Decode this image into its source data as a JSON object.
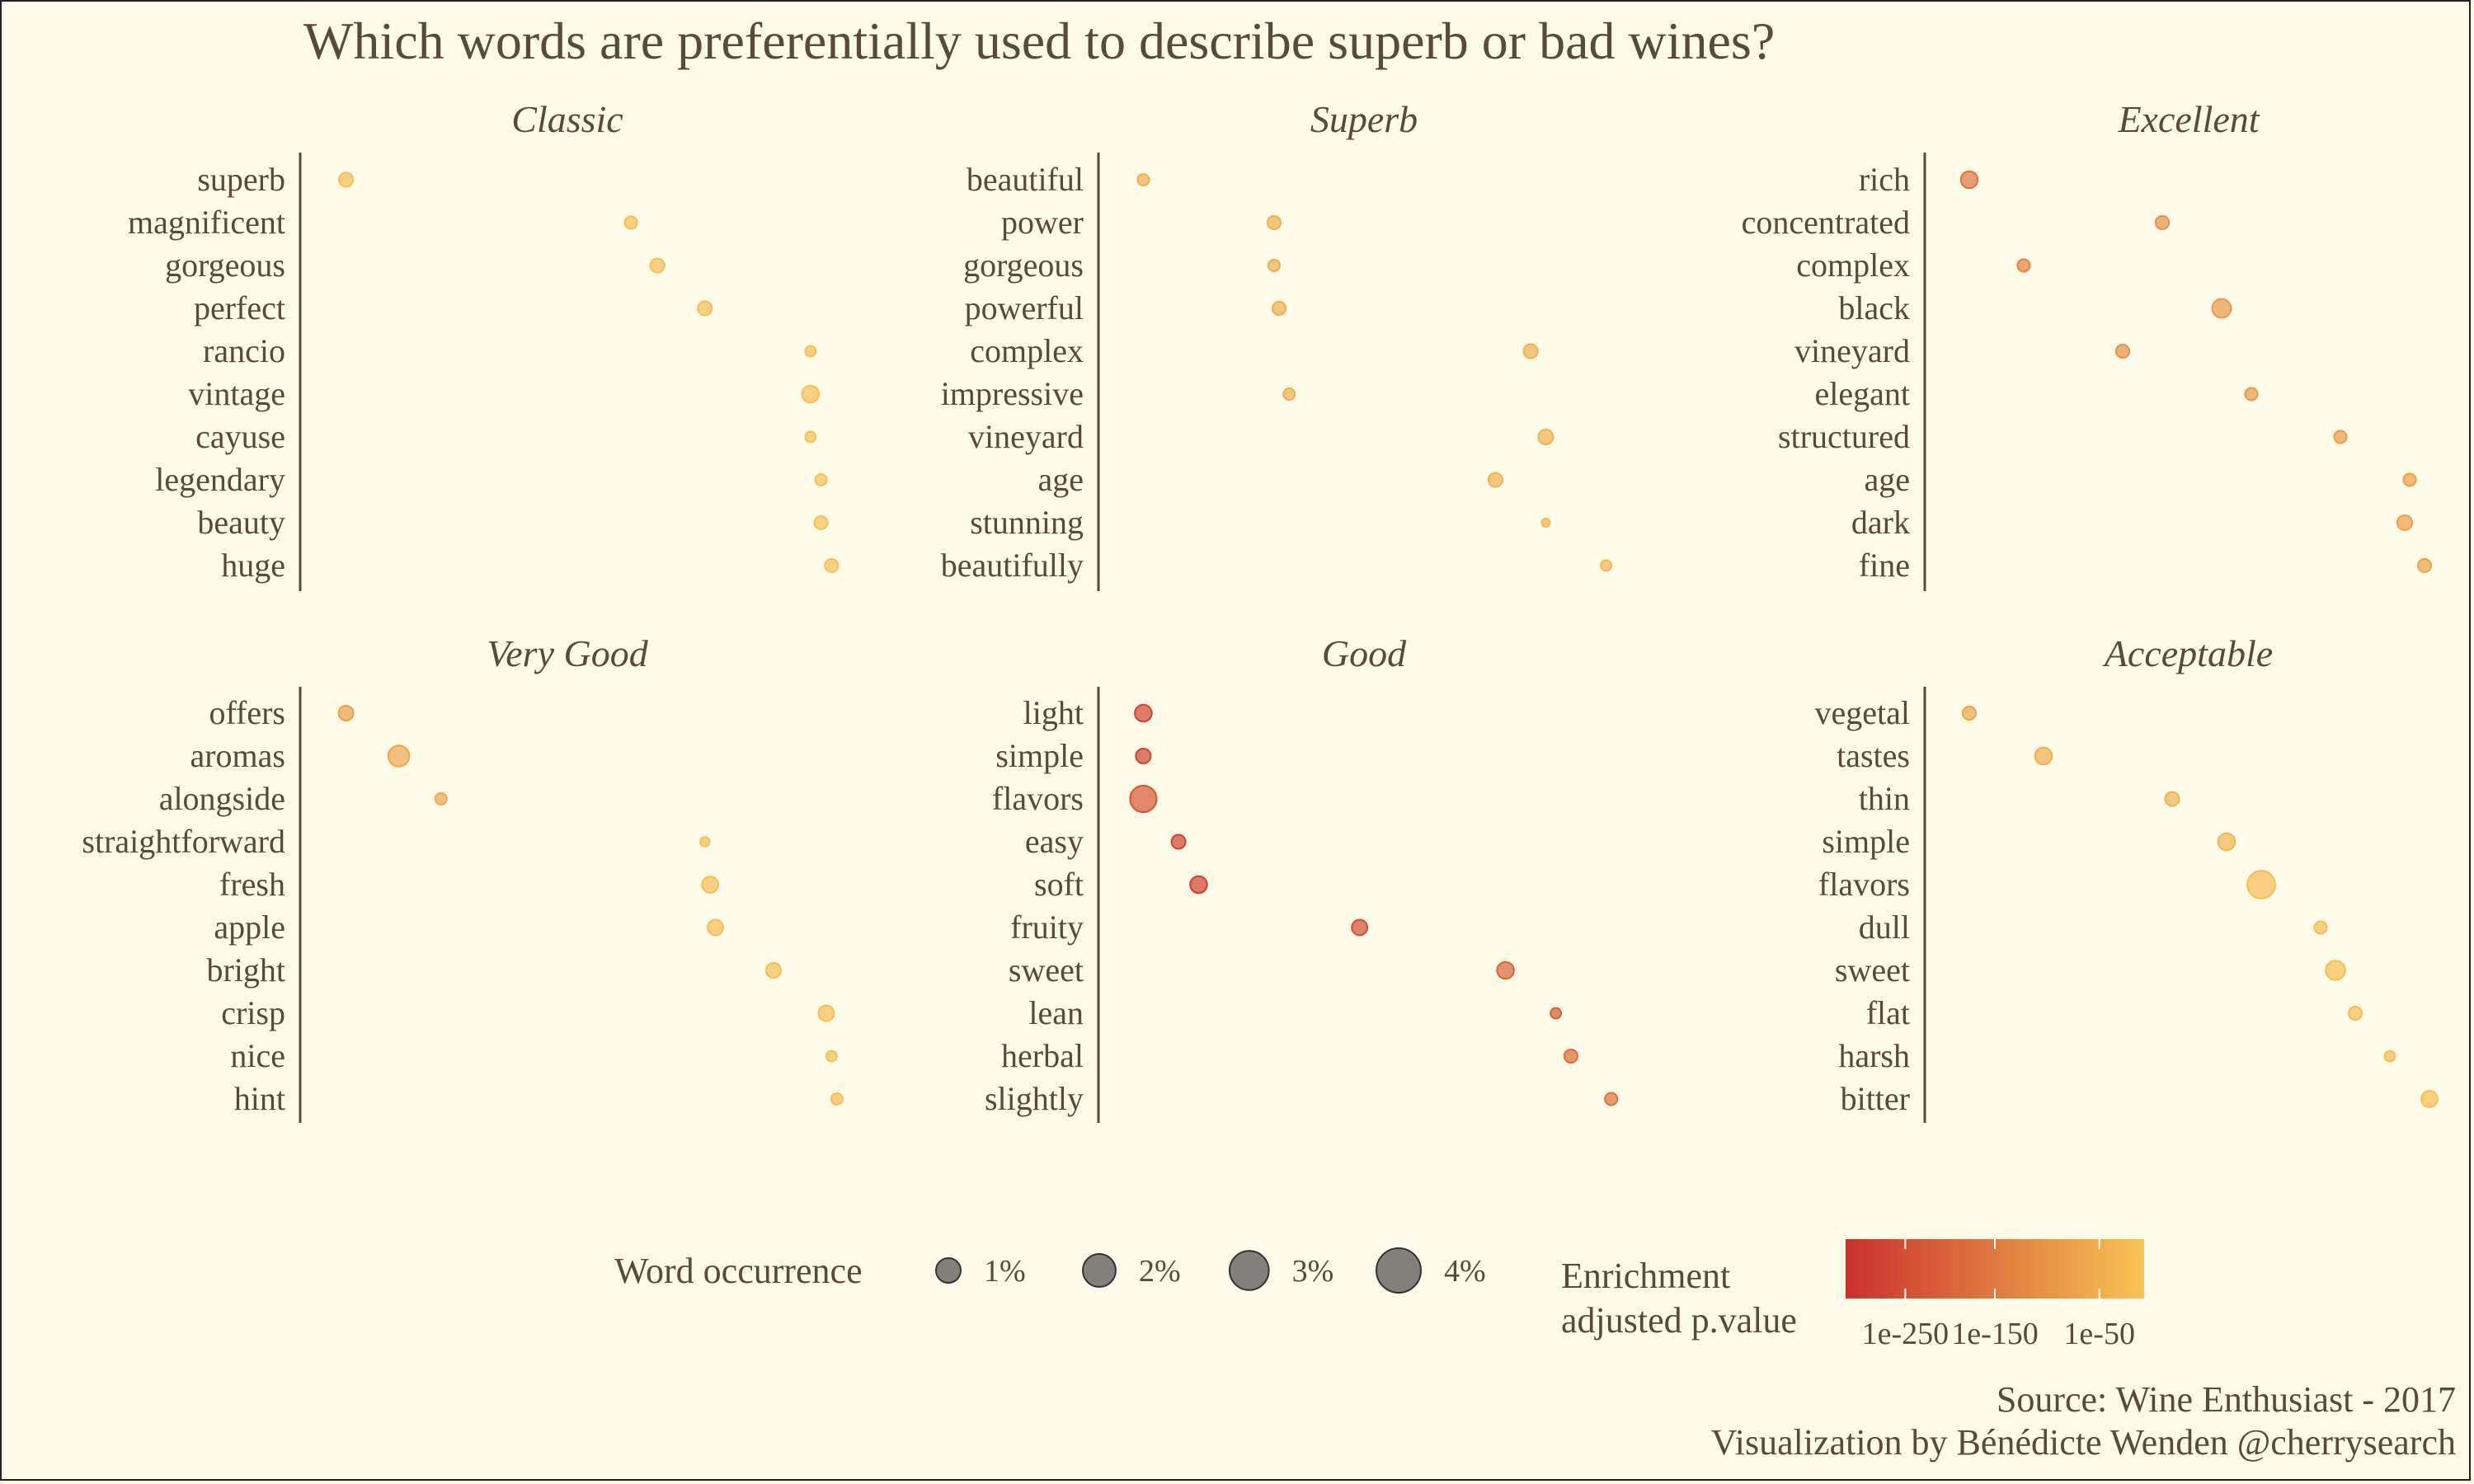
{
  "title": "Which words are preferentially used to describe superb or bad wines?",
  "source_line1": "Source: Wine Enthusiast - 2017",
  "source_line2": "Visualization by Bénédicte Wenden @cherrysearch",
  "colors": {
    "background": "#fffbe9",
    "text": "#5a4a38",
    "low_p": "#c9312d",
    "high_p": "#f7c455"
  },
  "chart_data": {
    "type": "scatter",
    "x_unit": "relative enrichment rank (0 = most enriched, 1 = least)",
    "panels": [
      {
        "name": "Classic",
        "words": [
          "superb",
          "magnificent",
          "gorgeous",
          "perfect",
          "rancio",
          "vintage",
          "cayuse",
          "legendary",
          "beauty",
          "huge"
        ],
        "x": [
          0.04,
          0.58,
          0.63,
          0.72,
          0.92,
          0.92,
          0.92,
          0.94,
          0.94,
          0.96
        ],
        "size": [
          0.9,
          0.7,
          0.9,
          0.9,
          0.5,
          1.3,
          0.5,
          0.6,
          0.8,
          0.8
        ],
        "p": [
          0.95,
          0.95,
          0.95,
          0.95,
          0.95,
          0.98,
          0.98,
          0.98,
          0.98,
          0.98
        ]
      },
      {
        "name": "Superb",
        "words": [
          "beautiful",
          "power",
          "gorgeous",
          "powerful",
          "complex",
          "impressive",
          "vineyard",
          "age",
          "stunning",
          "beautifully"
        ],
        "x": [
          0.04,
          0.3,
          0.3,
          0.31,
          0.81,
          0.33,
          0.84,
          0.74,
          0.84,
          0.96
        ],
        "size": [
          0.6,
          0.8,
          0.6,
          0.8,
          0.9,
          0.6,
          1.0,
          0.9,
          0.3,
          0.5
        ],
        "p": [
          0.85,
          0.85,
          0.85,
          0.85,
          0.85,
          0.85,
          0.88,
          0.88,
          0.9,
          0.9
        ]
      },
      {
        "name": "Excellent",
        "words": [
          "rich",
          "concentrated",
          "complex",
          "black",
          "vineyard",
          "elegant",
          "structured",
          "age",
          "dark",
          "fine"
        ],
        "x": [
          0.04,
          0.43,
          0.15,
          0.55,
          0.35,
          0.61,
          0.79,
          0.93,
          0.92,
          0.96
        ],
        "size": [
          1.3,
          0.8,
          0.7,
          1.6,
          0.8,
          0.7,
          0.7,
          0.7,
          1.0,
          0.8
        ],
        "p": [
          0.45,
          0.65,
          0.55,
          0.7,
          0.65,
          0.7,
          0.72,
          0.75,
          0.75,
          0.78
        ]
      },
      {
        "name": "Very Good",
        "words": [
          "offers",
          "aromas",
          "alongside",
          "straightforward",
          "fresh",
          "apple",
          "bright",
          "crisp",
          "nice",
          "hint"
        ],
        "x": [
          0.04,
          0.14,
          0.22,
          0.72,
          0.73,
          0.74,
          0.85,
          0.95,
          0.96,
          0.97
        ],
        "size": [
          1.0,
          2.0,
          0.6,
          0.4,
          1.2,
          1.1,
          1.0,
          1.1,
          0.5,
          0.6
        ],
        "p": [
          0.75,
          0.8,
          0.8,
          0.95,
          0.95,
          0.95,
          0.95,
          0.95,
          0.95,
          0.95
        ]
      },
      {
        "name": "Good",
        "words": [
          "light",
          "simple",
          "flavors",
          "easy",
          "soft",
          "fruity",
          "sweet",
          "lean",
          "herbal",
          "slightly"
        ],
        "x": [
          0.04,
          0.04,
          0.04,
          0.11,
          0.15,
          0.47,
          0.76,
          0.86,
          0.89,
          0.97
        ],
        "size": [
          1.3,
          1.0,
          3.2,
          0.9,
          1.3,
          1.1,
          1.3,
          0.5,
          0.8,
          0.7
        ],
        "p": [
          0.12,
          0.12,
          0.25,
          0.12,
          0.1,
          0.2,
          0.35,
          0.3,
          0.4,
          0.45
        ]
      },
      {
        "name": "Acceptable",
        "words": [
          "vegetal",
          "tastes",
          "thin",
          "simple",
          "flavors",
          "dull",
          "sweet",
          "flat",
          "harsh",
          "bitter"
        ],
        "x": [
          0.04,
          0.19,
          0.45,
          0.56,
          0.63,
          0.75,
          0.78,
          0.82,
          0.89,
          0.97
        ],
        "size": [
          0.8,
          1.3,
          0.9,
          1.3,
          3.5,
          0.7,
          1.7,
          0.8,
          0.5,
          1.2
        ],
        "p": [
          0.8,
          0.85,
          0.88,
          0.9,
          0.95,
          0.95,
          0.95,
          0.95,
          0.95,
          0.95
        ]
      }
    ],
    "size_legend": {
      "title": "Word occurrence",
      "values": [
        1,
        2,
        3,
        4
      ],
      "labels": [
        "1%",
        "2%",
        "3%",
        "4%"
      ]
    },
    "color_legend": {
      "title_line1": "Enrichment",
      "title_line2": "adjusted p.value",
      "labels": [
        "1e-250",
        "1e-150",
        "1e-50"
      ],
      "label_positions": [
        0.2,
        0.5,
        0.85
      ]
    }
  }
}
